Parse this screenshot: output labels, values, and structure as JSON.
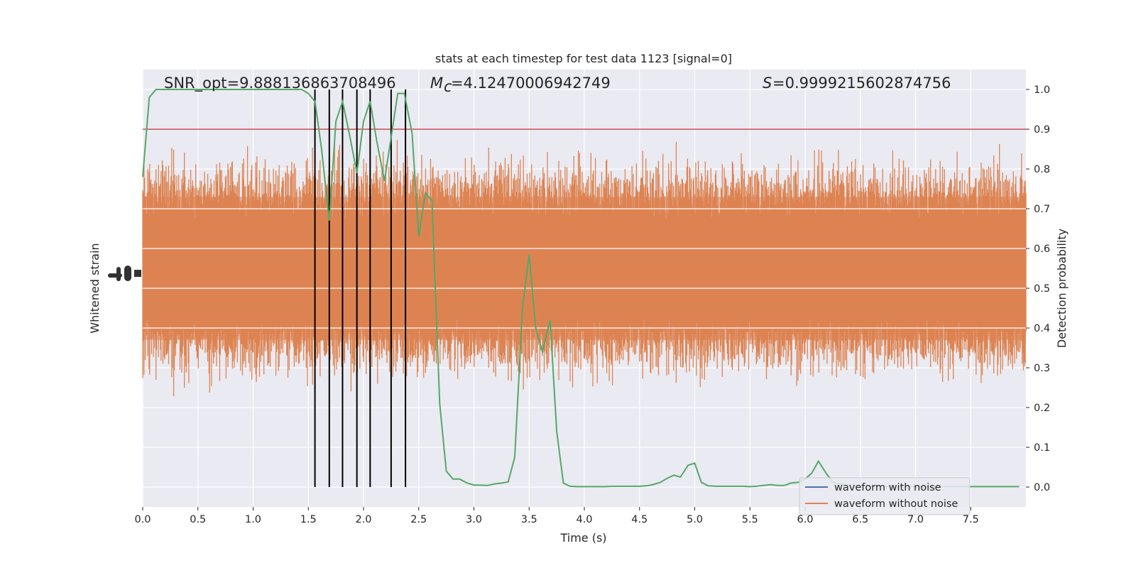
{
  "chart_data": {
    "type": "line",
    "title": "stats at each timestep for test data 1123 [signal=0]",
    "xlabel": "Time (s)",
    "ylabel_left": "Whitened strain",
    "ylabel_right": "Detection probability",
    "xlim": [
      0,
      8
    ],
    "ylim_right": [
      -0.05,
      1.05
    ],
    "x_ticks": [
      "0.0",
      "0.5",
      "1.0",
      "1.5",
      "2.0",
      "2.5",
      "3.0",
      "3.5",
      "4.0",
      "4.5",
      "5.0",
      "5.5",
      "6.0",
      "6.5",
      "7.0",
      "7.5"
    ],
    "y_ticks_right": [
      "0.0",
      "0.1",
      "0.2",
      "0.3",
      "0.4",
      "0.5",
      "0.6",
      "0.7",
      "0.8",
      "0.9",
      "1.0"
    ],
    "annotations": {
      "snr_label": "SNR_opt=9.888136863708496",
      "mc_label": "=4.12470006942749",
      "s_label": "=0.9999215602874756"
    },
    "threshold": 0.9,
    "event_markers_x": [
      1.56,
      1.69,
      1.81,
      1.94,
      2.06,
      2.25,
      2.38
    ],
    "legend": {
      "placement": "lower right",
      "entries": [
        "waveform with noise",
        "waveform without noise"
      ]
    },
    "series": [
      {
        "name": "Detection probability",
        "color": "#55a868",
        "x": [
          0.0,
          0.06,
          0.12,
          0.19,
          0.25,
          0.31,
          0.37,
          0.44,
          0.5,
          0.56,
          0.62,
          0.69,
          0.75,
          0.81,
          0.87,
          0.94,
          1.0,
          1.06,
          1.12,
          1.19,
          1.25,
          1.31,
          1.37,
          1.44,
          1.5,
          1.56,
          1.62,
          1.69,
          1.75,
          1.81,
          1.87,
          1.94,
          2.0,
          2.06,
          2.12,
          2.19,
          2.25,
          2.31,
          2.37,
          2.44,
          2.5,
          2.56,
          2.62,
          2.69,
          2.75,
          2.81,
          2.87,
          2.94,
          3.0,
          3.06,
          3.12,
          3.19,
          3.25,
          3.31,
          3.37,
          3.44,
          3.5,
          3.56,
          3.62,
          3.69,
          3.75,
          3.81,
          3.87,
          3.94,
          4.0,
          4.06,
          4.12,
          4.19,
          4.25,
          4.31,
          4.37,
          4.44,
          4.5,
          4.56,
          4.62,
          4.69,
          4.75,
          4.81,
          4.87,
          4.94,
          5.0,
          5.06,
          5.12,
          5.19,
          5.25,
          5.31,
          5.37,
          5.44,
          5.5,
          5.56,
          5.62,
          5.69,
          5.75,
          5.81,
          5.87,
          5.94,
          6.0,
          6.06,
          6.12,
          6.19,
          6.25,
          6.31,
          6.37,
          6.44,
          6.5,
          6.56,
          6.62,
          6.69,
          6.75,
          6.81,
          6.87,
          6.94,
          7.0,
          7.06,
          7.12,
          7.19,
          7.25,
          7.31,
          7.37,
          7.44,
          7.5,
          7.56,
          7.62,
          7.69,
          7.75,
          7.81,
          7.87,
          7.94
        ],
        "values": [
          0.78,
          0.98,
          1.0,
          1.0,
          1.0,
          1.0,
          1.0,
          1.0,
          1.0,
          1.0,
          1.0,
          1.0,
          1.0,
          1.0,
          1.0,
          1.0,
          1.0,
          1.0,
          1.0,
          1.0,
          1.0,
          1.0,
          1.0,
          1.0,
          0.99,
          0.97,
          0.85,
          0.67,
          0.92,
          0.97,
          0.89,
          0.79,
          0.92,
          0.97,
          0.87,
          0.77,
          0.88,
          0.99,
          0.99,
          0.89,
          0.63,
          0.74,
          0.72,
          0.21,
          0.04,
          0.02,
          0.02,
          0.01,
          0.005,
          0.005,
          0.004,
          0.008,
          0.01,
          0.013,
          0.075,
          0.45,
          0.585,
          0.4,
          0.34,
          0.42,
          0.14,
          0.01,
          0.002,
          0.001,
          0.001,
          0.001,
          0.001,
          0.001,
          0.002,
          0.002,
          0.002,
          0.002,
          0.002,
          0.003,
          0.006,
          0.012,
          0.022,
          0.03,
          0.025,
          0.055,
          0.06,
          0.012,
          0.003,
          0.002,
          0.002,
          0.002,
          0.002,
          0.002,
          0.001,
          0.002,
          0.004,
          0.006,
          0.004,
          0.004,
          0.01,
          0.012,
          0.02,
          0.035,
          0.065,
          0.035,
          0.012,
          0.008,
          0.005,
          0.004,
          0.003,
          0.002,
          0.002,
          0.002,
          0.001,
          0.001,
          0.001,
          0.001,
          0.001,
          0.001,
          0.001,
          0.001,
          0.001,
          0.001,
          0.001,
          0.001,
          0.001,
          0.001,
          0.001,
          0.001,
          0.001,
          0.001,
          0.001,
          0.001
        ]
      },
      {
        "name": "waveform without noise",
        "color": "#dd8452",
        "noise_band_right_units": [
          0.32,
          0.78
        ]
      },
      {
        "name": "waveform with noise",
        "color": "#4c72b0"
      }
    ]
  },
  "colors": {
    "plot_background": "#eaeaf2",
    "grid": "#ffffff",
    "threshold_line": "#c44e52",
    "event_marker": "#000000"
  }
}
